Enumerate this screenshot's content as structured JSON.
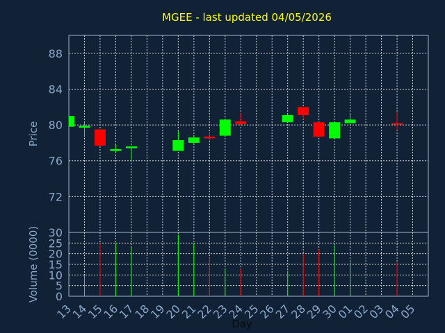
{
  "chart_data": {
    "type": "candlestick",
    "title": "MGEE - last updated 04/05/2026",
    "price_panel": {
      "ylabel": "Price",
      "ylim": [
        68,
        90
      ],
      "yticks": [
        72,
        76,
        80,
        84,
        88
      ]
    },
    "volume_panel": {
      "ylabel": "Volume (0000)",
      "ylim": [
        0,
        30
      ],
      "yticks": [
        0,
        5,
        10,
        15,
        20,
        25,
        30
      ]
    },
    "xlabel": "Day",
    "x_ticks": [
      "13",
      "14",
      "15",
      "16",
      "17",
      "18",
      "19",
      "20",
      "21",
      "22",
      "23",
      "24",
      "25",
      "26",
      "27",
      "28",
      "29",
      "30",
      "01",
      "02",
      "03",
      "04",
      "05"
    ],
    "grid": true,
    "candles": [
      {
        "day": "13",
        "open": 79.8,
        "high": 81.0,
        "low": 79.8,
        "close": 81.0,
        "volume": 0
      },
      {
        "day": "14",
        "open": 79.7,
        "high": 80.3,
        "low": 78.6,
        "close": 79.9,
        "volume": 10
      },
      {
        "day": "15",
        "open": 79.5,
        "high": 79.5,
        "low": 77.6,
        "close": 77.7,
        "volume": 25
      },
      {
        "day": "16",
        "open": 77.1,
        "high": 77.8,
        "low": 76.9,
        "close": 77.3,
        "volume": 25
      },
      {
        "day": "17",
        "open": 77.4,
        "high": 77.6,
        "low": 75.9,
        "close": 77.6,
        "volume": 23
      },
      {
        "day": "20",
        "open": 77.1,
        "high": 79.3,
        "low": 77.1,
        "close": 78.3,
        "volume": 29
      },
      {
        "day": "21",
        "open": 78.0,
        "high": 78.7,
        "low": 77.9,
        "close": 78.6,
        "volume": 25
      },
      {
        "day": "22",
        "open": 78.7,
        "high": 79.1,
        "low": 78.2,
        "close": 78.5,
        "volume": 18
      },
      {
        "day": "23",
        "open": 78.8,
        "high": 80.6,
        "low": 78.8,
        "close": 80.6,
        "volume": 13
      },
      {
        "day": "24",
        "open": 80.4,
        "high": 81.3,
        "low": 79.9,
        "close": 80.1,
        "volume": 13
      },
      {
        "day": "27",
        "open": 80.3,
        "high": 81.2,
        "low": 80.3,
        "close": 81.1,
        "volume": 12
      },
      {
        "day": "28",
        "open": 82.0,
        "high": 82.0,
        "low": 80.6,
        "close": 81.1,
        "volume": 20
      },
      {
        "day": "29",
        "open": 80.3,
        "high": 80.3,
        "low": 78.7,
        "close": 78.7,
        "volume": 22
      },
      {
        "day": "30",
        "open": 78.5,
        "high": 80.3,
        "low": 78.5,
        "close": 80.3,
        "volume": 24
      },
      {
        "day": "01",
        "open": 80.2,
        "high": 81.2,
        "low": 80.2,
        "close": 80.6,
        "volume": 17
      },
      {
        "day": "04",
        "open": 80.2,
        "high": 81.5,
        "low": 79.4,
        "close": 80.1,
        "volume": 16
      }
    ],
    "colors": {
      "background": "#112236",
      "plot_border": "#9db4cc",
      "grid": "#d4d4d4",
      "title": "#ffff00",
      "axis_text": "#8aa6c8",
      "tick_text": "#8aa6c8",
      "up": "#00ff00",
      "down": "#ff0000"
    }
  }
}
